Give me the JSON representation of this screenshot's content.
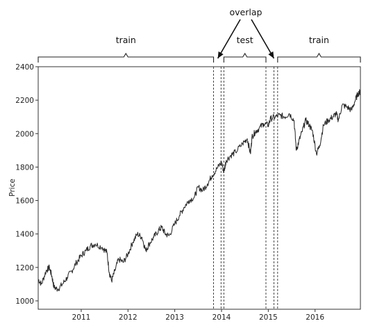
{
  "chart_data": {
    "type": "line",
    "ylabel": "Price",
    "xlabel": "",
    "title": "",
    "ylim": [
      950,
      2400
    ],
    "xlim": [
      2010.08,
      2016.97
    ],
    "yticks": [
      1000,
      1200,
      1400,
      1600,
      1800,
      2000,
      2200,
      2400
    ],
    "xticks": [
      {
        "value": 2011.0,
        "label": "2011"
      },
      {
        "value": 2012.0,
        "label": "2012"
      },
      {
        "value": 2013.0,
        "label": "2013"
      },
      {
        "value": 2014.0,
        "label": "2014"
      },
      {
        "value": 2015.0,
        "label": "2015"
      },
      {
        "value": 2016.0,
        "label": "2016"
      }
    ],
    "grid": false,
    "series": [
      {
        "x": [
          2010.08,
          2010.15,
          2010.25,
          2010.32,
          2010.37,
          2010.42,
          2010.5,
          2010.6,
          2010.7,
          2010.8,
          2010.9,
          2011.0,
          2011.1,
          2011.2,
          2011.3,
          2011.45,
          2011.55,
          2011.6,
          2011.65,
          2011.72,
          2011.8,
          2011.9,
          2012.0,
          2012.1,
          2012.2,
          2012.3,
          2012.38,
          2012.45,
          2012.55,
          2012.65,
          2012.72,
          2012.8,
          2012.88,
          2013.0,
          2013.1,
          2013.2,
          2013.3,
          2013.42,
          2013.5,
          2013.6,
          2013.7,
          2013.8,
          2013.9,
          2014.0,
          2014.05,
          2014.1,
          2014.2,
          2014.3,
          2014.45,
          2014.55,
          2014.62,
          2014.65,
          2014.72,
          2014.8,
          2014.9,
          2015.0,
          2015.05,
          2015.15,
          2015.25,
          2015.35,
          2015.45,
          2015.55,
          2015.6,
          2015.65,
          2015.72,
          2015.8,
          2015.88,
          2015.95,
          2016.03,
          2016.1,
          2016.18,
          2016.28,
          2016.38,
          2016.45,
          2016.5,
          2016.58,
          2016.68,
          2016.78,
          2016.86,
          2016.92,
          2016.97
        ],
        "values": [
          1130,
          1100,
          1180,
          1200,
          1150,
          1080,
          1070,
          1100,
          1140,
          1180,
          1230,
          1270,
          1300,
          1330,
          1340,
          1320,
          1290,
          1170,
          1120,
          1180,
          1250,
          1230,
          1280,
          1350,
          1400,
          1380,
          1300,
          1340,
          1380,
          1420,
          1440,
          1400,
          1390,
          1460,
          1510,
          1560,
          1600,
          1620,
          1680,
          1660,
          1700,
          1750,
          1790,
          1830,
          1770,
          1840,
          1870,
          1890,
          1940,
          1970,
          1880,
          1980,
          2010,
          2030,
          2060,
          2050,
          2090,
          2100,
          2110,
          2100,
          2120,
          2080,
          1900,
          1950,
          2010,
          2080,
          2050,
          2010,
          1880,
          1930,
          2050,
          2080,
          2100,
          2120,
          2080,
          2170,
          2160,
          2140,
          2200,
          2240,
          2250
        ]
      }
    ],
    "annotations": [
      {
        "label": "train",
        "x_start": 2010.08,
        "x_end": 2013.83
      },
      {
        "label": "test",
        "x_start": 2014.05,
        "x_end": 2014.95
      },
      {
        "label": "train",
        "x_start": 2015.2,
        "x_end": 2016.97
      },
      {
        "label": "overlap",
        "targets": [
          2013.92,
          2015.12
        ]
      }
    ],
    "boundaries": [
      2013.83,
      2013.99,
      2014.05,
      2014.95,
      2015.12,
      2015.2
    ]
  }
}
